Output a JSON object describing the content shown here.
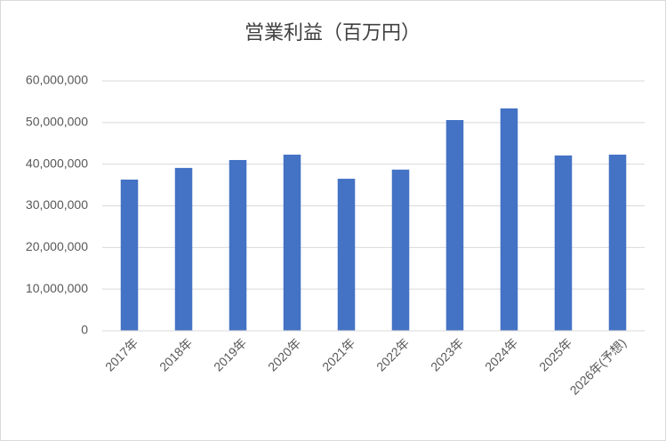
{
  "chart_data": {
    "type": "bar",
    "title": "営業利益（百万円）",
    "categories": [
      "2017年",
      "2018年",
      "2019年",
      "2020年",
      "2021年",
      "2022年",
      "2023年",
      "2024年",
      "2025年",
      "2026年(予想)"
    ],
    "values": [
      36300000,
      39100000,
      41000000,
      42300000,
      36500000,
      38700000,
      50600000,
      53400000,
      42100000,
      42300000
    ],
    "color": "#4472c4",
    "ylim": [
      0,
      60000000
    ],
    "yticks": [
      {
        "value": 0,
        "label": "0"
      },
      {
        "value": 10000000,
        "label": "10,000,000"
      },
      {
        "value": 20000000,
        "label": "20,000,000"
      },
      {
        "value": 30000000,
        "label": "30,000,000"
      },
      {
        "value": 40000000,
        "label": "40,000,000"
      },
      {
        "value": 50000000,
        "label": "50,000,000"
      },
      {
        "value": 60000000,
        "label": "60,000,000"
      }
    ],
    "grid": true
  }
}
